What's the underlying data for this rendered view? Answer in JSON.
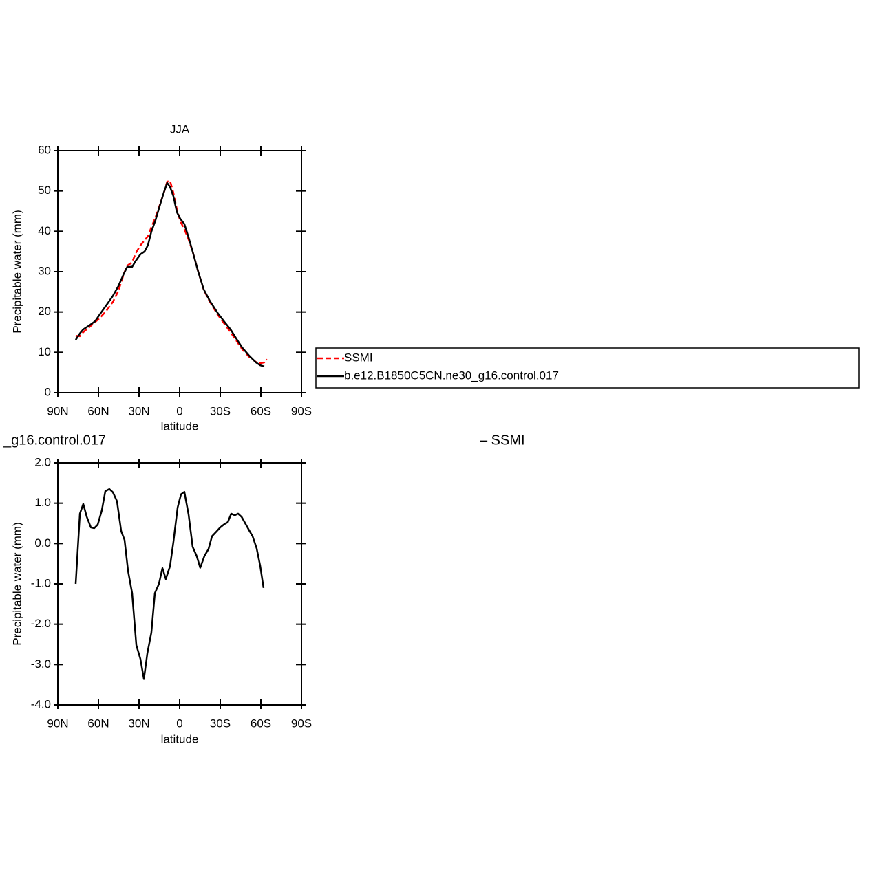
{
  "chart_data": [
    {
      "type": "line",
      "title": "JJA",
      "x_label": "latitude",
      "y_label": "Precipitable water (mm)",
      "x": [
        76.8,
        73.7,
        71.2,
        66.6,
        62.5,
        59,
        53.9,
        49.3,
        45.3,
        41.2,
        38.7,
        35.1,
        32.6,
        29,
        25.9,
        23.4,
        20.9,
        17.8,
        14.8,
        11.7,
        9.2,
        7.1,
        4.6,
        2.1,
        -0.5,
        -3.5,
        -6.6,
        -9.6,
        -13.7,
        -17.8,
        -22.4,
        -28,
        -33,
        -37.6,
        -41.7,
        -46.2,
        -51.3,
        -56.4,
        -59.5,
        -62.5,
        -64.5
      ],
      "xlim": [
        90,
        -90
      ],
      "xticks": [
        {
          "value": 90,
          "label": "90N"
        },
        {
          "value": 60,
          "label": "60N"
        },
        {
          "value": 30,
          "label": "30N"
        },
        0,
        {
          "value": -30,
          "label": "30S"
        },
        {
          "value": -60,
          "label": "60S"
        },
        {
          "value": -90,
          "label": "90S"
        }
      ],
      "ylim": [
        0,
        60
      ],
      "yticks": [
        0,
        10,
        20,
        30,
        40,
        50,
        60
      ],
      "legend": "right",
      "series": [
        {
          "name": "SSMI",
          "color": "#ff0000",
          "line_style": "dashed",
          "values": [
            14.1,
            14.0,
            15.0,
            16.3,
            17.5,
            18.5,
            20.4,
            22.5,
            25.2,
            29.5,
            31.5,
            32.3,
            34.5,
            36.5,
            37.8,
            38.8,
            41,
            43.5,
            46.4,
            49.5,
            52.3,
            52.5,
            49.5,
            45.5,
            42.5,
            40.5,
            38,
            35,
            30,
            25.5,
            22.5,
            19.4,
            17.1,
            15,
            13,
            10.8,
            8.9,
            7.6,
            7.3,
            7.5,
            8.3
          ]
        },
        {
          "name": "b.e12.B1850C5CN.ne30_g16.control.017",
          "color": "#000000",
          "line_style": "solid",
          "values": [
            13.1,
            14.7,
            15.7,
            16.7,
            17.7,
            19.4,
            21.8,
            24,
            26.4,
            29.5,
            31.2,
            31.2,
            32.6,
            34.3,
            35,
            36.6,
            39.9,
            42.8,
            46.2,
            49.6,
            52,
            51,
            48.7,
            44.8,
            43.1,
            41.8,
            38.5,
            35,
            30,
            25.6,
            22.7,
            19.8,
            17.6,
            15.7,
            13.5,
            11.2,
            9.2,
            7.5,
            6.8,
            6.5,
            null
          ]
        }
      ]
    },
    {
      "type": "line",
      "title_left": "_g16.control.017",
      "title_right": "– SSMI",
      "x_label": "latitude",
      "y_label": "Precipitable water (mm)",
      "x": [
        76.8,
        73.7,
        71.2,
        68.6,
        65.6,
        63.1,
        60.5,
        57.5,
        54.9,
        51.9,
        49.3,
        46.3,
        43.2,
        40.7,
        38.1,
        35.1,
        32,
        29,
        26.4,
        23.9,
        20.9,
        18.3,
        15.3,
        12.7,
        10.2,
        7.1,
        4.6,
        1.5,
        -1,
        -3.5,
        -6.6,
        -9.6,
        -12.7,
        -15.2,
        -18.3,
        -21.3,
        -23.9,
        -27,
        -30,
        -33,
        -35.6,
        -38.1,
        -40.7,
        -43.2,
        -45.8,
        -48.8,
        -51.3,
        -53.9,
        -56.9,
        -59.5,
        -62
      ],
      "xlim": [
        90,
        -90
      ],
      "xticks": [
        {
          "value": 90,
          "label": "90N"
        },
        {
          "value": 60,
          "label": "60N"
        },
        {
          "value": 30,
          "label": "30N"
        },
        0,
        {
          "value": -30,
          "label": "30S"
        },
        {
          "value": -60,
          "label": "60S"
        },
        {
          "value": -90,
          "label": "90S"
        }
      ],
      "ylim": [
        -4,
        2
      ],
      "yticks": [
        {
          "value": -4,
          "label": "-4.0"
        },
        {
          "value": -3,
          "label": "-3.0"
        },
        {
          "value": -2,
          "label": "-2.0"
        },
        {
          "value": -1,
          "label": "-1.0"
        },
        {
          "value": 0,
          "label": "0.0"
        },
        {
          "value": 1,
          "label": "1.0"
        },
        {
          "value": 2,
          "label": "2.0"
        }
      ],
      "series": [
        {
          "color": "#000000",
          "line_style": "solid",
          "values": [
            -1,
            0.74,
            0.98,
            0.66,
            0.4,
            0.38,
            0.47,
            0.82,
            1.3,
            1.35,
            1.27,
            1.05,
            0.31,
            0.09,
            -0.68,
            -1.23,
            -2.52,
            -2.86,
            -3.36,
            -2.73,
            -2.21,
            -1.23,
            -1,
            -0.61,
            -0.88,
            -0.56,
            0.04,
            0.89,
            1.22,
            1.28,
            0.72,
            -0.08,
            -0.32,
            -0.6,
            -0.31,
            -0.14,
            0.18,
            0.29,
            0.4,
            0.48,
            0.53,
            0.74,
            0.7,
            0.74,
            0.66,
            0.48,
            0.33,
            0.18,
            -0.12,
            -0.55,
            -1.1
          ]
        }
      ]
    }
  ]
}
